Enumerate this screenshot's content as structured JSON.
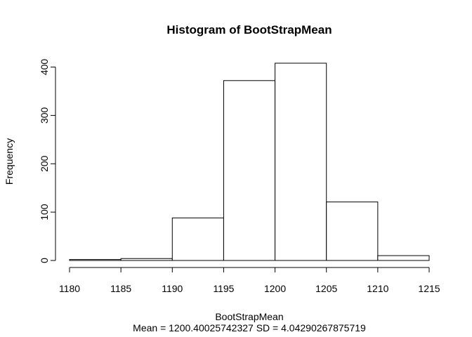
{
  "chart_data": {
    "type": "bar",
    "title": "Histogram of BootStrapMean",
    "xlabel": "BootStrapMean",
    "ylabel": "Frequency",
    "subtitle": "Mean = 1200.40025742327 SD = 4.04290267875719",
    "bin_edges": [
      1180,
      1185,
      1190,
      1195,
      1200,
      1205,
      1210,
      1215
    ],
    "values": [
      2,
      4,
      88,
      372,
      408,
      121,
      10
    ],
    "xlim": [
      1180,
      1215
    ],
    "ylim": [
      0,
      408
    ],
    "x_ticks": [
      1180,
      1185,
      1190,
      1195,
      1200,
      1205,
      1210,
      1215
    ],
    "y_ticks": [
      0,
      100,
      200,
      300,
      400
    ],
    "grid": false,
    "legend": "none",
    "bar_fill": "#ffffff",
    "bar_stroke": "#000000"
  }
}
